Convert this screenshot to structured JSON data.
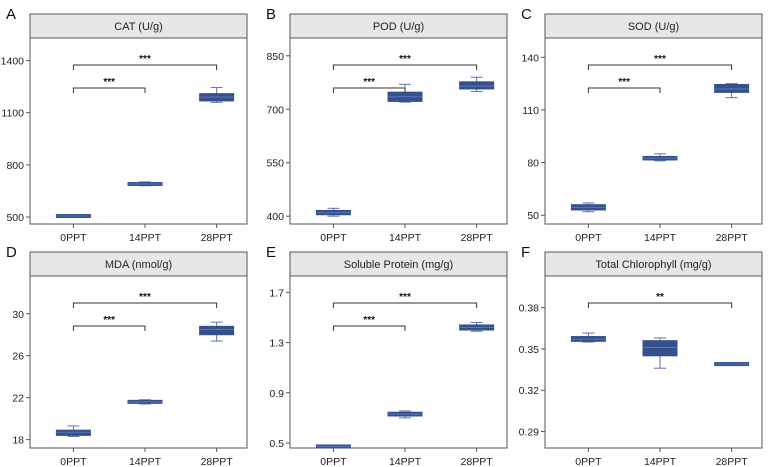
{
  "chart_data": [
    {
      "panel": "A",
      "type": "box",
      "title": "CAT (U/g)",
      "categories": [
        "0PPT",
        "14PPT",
        "28PPT"
      ],
      "yticks": [
        500,
        800,
        1100,
        1400
      ],
      "ylim": [
        460,
        1530
      ],
      "boxes": [
        {
          "min": 500,
          "q1": 502,
          "median": 506,
          "q3": 510,
          "max": 514
        },
        {
          "min": 680,
          "q1": 684,
          "median": 690,
          "q3": 696,
          "max": 702
        },
        {
          "min": 1160,
          "q1": 1168,
          "median": 1190,
          "q3": 1210,
          "max": 1245
        }
      ],
      "significance": [
        {
          "from": 0,
          "to": 1,
          "label": "***"
        },
        {
          "from": 0,
          "to": 2,
          "label": "***"
        }
      ]
    },
    {
      "panel": "B",
      "type": "box",
      "title": "POD (U/g)",
      "categories": [
        "0PPT",
        "14PPT",
        "28PPT"
      ],
      "yticks": [
        400,
        550,
        700,
        850
      ],
      "ylim": [
        378,
        900
      ],
      "boxes": [
        {
          "min": 400,
          "q1": 404,
          "median": 410,
          "q3": 416,
          "max": 422
        },
        {
          "min": 720,
          "q1": 722,
          "median": 735,
          "q3": 748,
          "max": 770
        },
        {
          "min": 750,
          "q1": 757,
          "median": 765,
          "q3": 777,
          "max": 790
        }
      ],
      "significance": [
        {
          "from": 0,
          "to": 1,
          "label": "***"
        },
        {
          "from": 0,
          "to": 2,
          "label": "***"
        }
      ]
    },
    {
      "panel": "C",
      "type": "box",
      "title": "SOD (U/g)",
      "categories": [
        "0PPT",
        "14PPT",
        "28PPT"
      ],
      "yticks": [
        50,
        80,
        110,
        140
      ],
      "ylim": [
        45,
        151
      ],
      "boxes": [
        {
          "min": 52,
          "q1": 53,
          "median": 54.5,
          "q3": 56,
          "max": 57
        },
        {
          "min": 81,
          "q1": 81.5,
          "median": 82.5,
          "q3": 83.5,
          "max": 85
        },
        {
          "min": 117,
          "q1": 120,
          "median": 122,
          "q3": 124.5,
          "max": 125
        }
      ],
      "significance": [
        {
          "from": 0,
          "to": 1,
          "label": "***"
        },
        {
          "from": 0,
          "to": 2,
          "label": "***"
        }
      ]
    },
    {
      "panel": "D",
      "type": "box",
      "title": "MDA (nmol/g)",
      "categories": [
        "0PPT",
        "14PPT",
        "28PPT"
      ],
      "yticks": [
        18,
        22,
        26,
        30
      ],
      "ylim": [
        17.2,
        33.6
      ],
      "boxes": [
        {
          "min": 18.3,
          "q1": 18.4,
          "median": 18.7,
          "q3": 18.9,
          "max": 19.3
        },
        {
          "min": 21.4,
          "q1": 21.5,
          "median": 21.6,
          "q3": 21.7,
          "max": 21.8
        },
        {
          "min": 27.4,
          "q1": 28.0,
          "median": 28.5,
          "q3": 28.8,
          "max": 29.2
        }
      ],
      "significance": [
        {
          "from": 0,
          "to": 1,
          "label": "***"
        },
        {
          "from": 0,
          "to": 2,
          "label": "***"
        }
      ]
    },
    {
      "panel": "E",
      "type": "box",
      "title": "Soluble Protein (mg/g)",
      "categories": [
        "0PPT",
        "14PPT",
        "28PPT"
      ],
      "yticks": [
        0.5,
        0.9,
        1.3,
        1.7
      ],
      "ylim": [
        0.46,
        1.83
      ],
      "boxes": [
        {
          "min": 0.465,
          "q1": 0.468,
          "median": 0.472,
          "q3": 0.476,
          "max": 0.48
        },
        {
          "min": 0.7,
          "q1": 0.715,
          "median": 0.73,
          "q3": 0.745,
          "max": 0.755
        },
        {
          "min": 1.39,
          "q1": 1.4,
          "median": 1.42,
          "q3": 1.44,
          "max": 1.46
        }
      ],
      "significance": [
        {
          "from": 0,
          "to": 1,
          "label": "***"
        },
        {
          "from": 0,
          "to": 2,
          "label": "***"
        }
      ]
    },
    {
      "panel": "F",
      "type": "box",
      "title": "Total Chlorophyll (mg/g)",
      "categories": [
        "0PPT",
        "14PPT",
        "28PPT"
      ],
      "yticks": [
        0.29,
        0.32,
        0.35,
        0.38
      ],
      "ylim": [
        0.278,
        0.403
      ],
      "yformat": 2,
      "boxes": [
        {
          "min": 0.355,
          "q1": 0.3555,
          "median": 0.357,
          "q3": 0.359,
          "max": 0.3615
        },
        {
          "min": 0.336,
          "q1": 0.345,
          "median": 0.351,
          "q3": 0.356,
          "max": 0.358
        },
        {
          "min": 0.3385,
          "q1": 0.3388,
          "median": 0.339,
          "q3": 0.3392,
          "max": 0.3395
        }
      ],
      "significance": [
        {
          "from": 0,
          "to": 2,
          "label": "**"
        }
      ]
    }
  ],
  "colors": {
    "box_fill": "#34518b",
    "box_line": "#5b73b8",
    "strip_bg": "#e7e7e7",
    "frame": "#555555",
    "bracket": "#333333"
  }
}
